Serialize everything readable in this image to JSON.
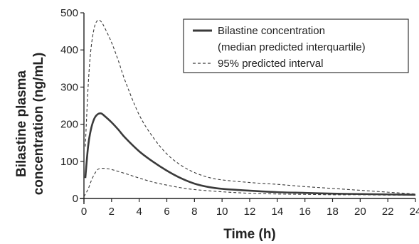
{
  "chart_data": {
    "type": "line",
    "title": "",
    "xlabel": "Time (h)",
    "ylabel_lines": [
      "Bilastine plasma",
      "concentration (ng/mL)"
    ],
    "xlim": [
      0,
      24
    ],
    "ylim": [
      0,
      500
    ],
    "xticks": [
      0,
      2,
      4,
      6,
      8,
      10,
      12,
      14,
      16,
      18,
      20,
      22,
      24
    ],
    "yticks": [
      0,
      100,
      200,
      300,
      400,
      500
    ],
    "grid": false,
    "legend_position": "top-right",
    "series": [
      {
        "name": "Bilastine concentration",
        "name_line2": "(median predicted interquartile)",
        "style": "solid",
        "color": "#3a3a3a",
        "points": [
          [
            0.1,
            55
          ],
          [
            0.3,
            140
          ],
          [
            0.5,
            185
          ],
          [
            0.75,
            215
          ],
          [
            1.0,
            227
          ],
          [
            1.25,
            229
          ],
          [
            1.5,
            222
          ],
          [
            2,
            205
          ],
          [
            2.5,
            185
          ],
          [
            3,
            163
          ],
          [
            4,
            127
          ],
          [
            5,
            99
          ],
          [
            6,
            75
          ],
          [
            7,
            55
          ],
          [
            8,
            40
          ],
          [
            9,
            31
          ],
          [
            10,
            26
          ],
          [
            12,
            21
          ],
          [
            14,
            17
          ],
          [
            16,
            15
          ],
          [
            18,
            13
          ],
          [
            20,
            12
          ],
          [
            22,
            11
          ],
          [
            24,
            10
          ]
        ]
      },
      {
        "name": "95% predicted interval",
        "style": "dashed",
        "color": "#3a3a3a",
        "points": [
          [
            0.1,
            140
          ],
          [
            0.3,
            300
          ],
          [
            0.5,
            400
          ],
          [
            0.75,
            460
          ],
          [
            1.0,
            480
          ],
          [
            1.25,
            476
          ],
          [
            1.5,
            460
          ],
          [
            2,
            420
          ],
          [
            2.5,
            370
          ],
          [
            3,
            315
          ],
          [
            4,
            225
          ],
          [
            5,
            165
          ],
          [
            6,
            120
          ],
          [
            7,
            90
          ],
          [
            8,
            70
          ],
          [
            9,
            57
          ],
          [
            10,
            50
          ],
          [
            12,
            43
          ],
          [
            14,
            38
          ],
          [
            16,
            32
          ],
          [
            18,
            27
          ],
          [
            20,
            22
          ],
          [
            22,
            17
          ],
          [
            24,
            12
          ]
        ]
      },
      {
        "name": "",
        "style": "dashed",
        "color": "#3a3a3a",
        "points": [
          [
            0,
            5
          ],
          [
            0.3,
            25
          ],
          [
            0.5,
            45
          ],
          [
            0.75,
            65
          ],
          [
            1.0,
            78
          ],
          [
            1.25,
            81
          ],
          [
            1.5,
            81
          ],
          [
            2,
            78
          ],
          [
            3,
            67
          ],
          [
            4,
            55
          ],
          [
            5,
            44
          ],
          [
            6,
            36
          ],
          [
            7,
            29
          ],
          [
            8,
            24
          ],
          [
            10,
            18
          ],
          [
            12,
            14
          ],
          [
            14,
            12
          ],
          [
            16,
            11
          ],
          [
            18,
            10
          ],
          [
            20,
            10
          ],
          [
            22,
            9
          ],
          [
            24,
            9
          ]
        ]
      }
    ]
  }
}
